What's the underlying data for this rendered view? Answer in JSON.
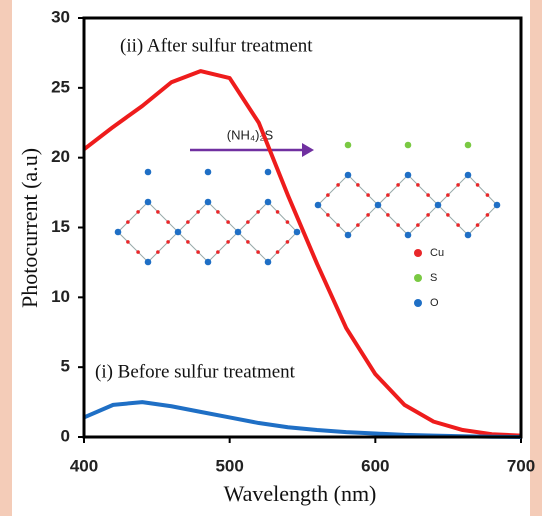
{
  "chart_data": {
    "type": "line",
    "xlabel": "Wavelength (nm)",
    "ylabel": "Photocurrent (a.u)",
    "x": [
      400,
      420,
      440,
      460,
      480,
      500,
      520,
      540,
      560,
      580,
      600,
      620,
      640,
      660,
      680,
      700
    ],
    "series": [
      {
        "name": "(ii) After sulfur treatment",
        "color": "#ee1c1c",
        "values": [
          20.6,
          22.2,
          23.7,
          25.4,
          26.2,
          25.7,
          22.5,
          17.3,
          12.4,
          7.8,
          4.5,
          2.3,
          1.1,
          0.5,
          0.2,
          0.1
        ]
      },
      {
        "name": "(i) Before sulfur treatment",
        "color": "#1f6fc5",
        "values": [
          1.4,
          2.3,
          2.5,
          2.2,
          1.8,
          1.4,
          1.0,
          0.7,
          0.5,
          0.35,
          0.25,
          0.15,
          0.1,
          0.05,
          0.02,
          0
        ]
      }
    ],
    "xlim": [
      400,
      700
    ],
    "xticks": [
      400,
      500,
      600,
      700
    ],
    "ylim": [
      0,
      30
    ],
    "yticks": [
      0,
      5,
      10,
      15,
      20,
      25,
      30
    ],
    "grid": false,
    "inset": {
      "reagent": "(NH₄)₂S",
      "arrow_color": "#7030a0",
      "legend": [
        {
          "name": "Cu",
          "color": "#e8272a"
        },
        {
          "name": "S",
          "color": "#7ac943"
        },
        {
          "name": "O",
          "color": "#1f6fc5"
        }
      ]
    }
  }
}
